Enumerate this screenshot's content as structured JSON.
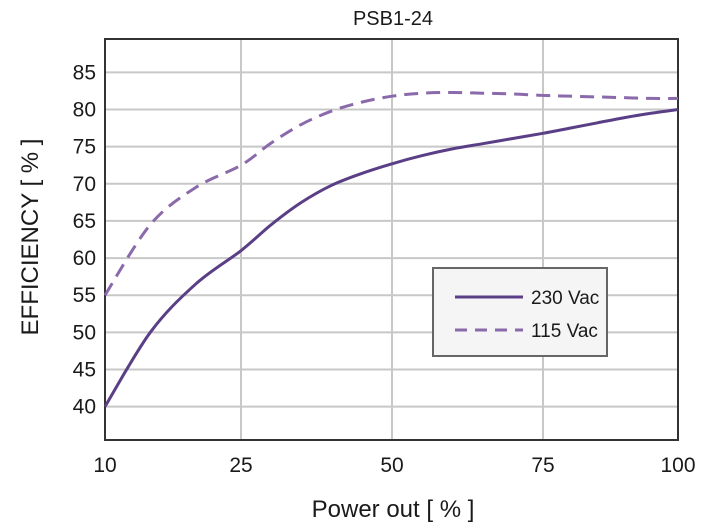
{
  "chart_data": {
    "type": "line",
    "title": "PSB1-24",
    "xlabel": "Power out [ % ]",
    "ylabel": "EFFICIENCY [ % ]",
    "x_ticks": [
      "10",
      "25",
      "50",
      "75",
      "100"
    ],
    "y_ticks": [
      "40",
      "45",
      "50",
      "55",
      "60",
      "65",
      "70",
      "75",
      "80",
      "85"
    ],
    "ylim": [
      35.5,
      89.5
    ],
    "grid": true,
    "legend_position": "right",
    "series": [
      {
        "name": "230 Vac",
        "style": "solid",
        "color": "#5b3f86",
        "x": [
          10,
          15,
          20,
          25,
          30,
          35,
          40,
          45,
          50,
          55,
          60,
          65,
          70,
          75,
          80,
          85,
          90,
          95,
          100
        ],
        "y": [
          40,
          50,
          56.5,
          61,
          64.5,
          67.5,
          69.8,
          71.4,
          72.7,
          73.8,
          74.7,
          75.4,
          76.1,
          76.8,
          77.5,
          78.2,
          78.9,
          79.5,
          80
        ]
      },
      {
        "name": "115 Vac",
        "style": "dashed",
        "color": "#8a6aaa",
        "x": [
          10,
          15,
          20,
          25,
          30,
          35,
          40,
          45,
          50,
          55,
          60,
          65,
          70,
          75,
          80,
          85,
          90,
          95,
          100
        ],
        "y": [
          55,
          64.5,
          69.5,
          72.5,
          75.5,
          78,
          79.8,
          81,
          81.8,
          82.2,
          82.3,
          82.2,
          82.1,
          81.9,
          81.8,
          81.7,
          81.6,
          81.5,
          81.5
        ]
      }
    ]
  }
}
